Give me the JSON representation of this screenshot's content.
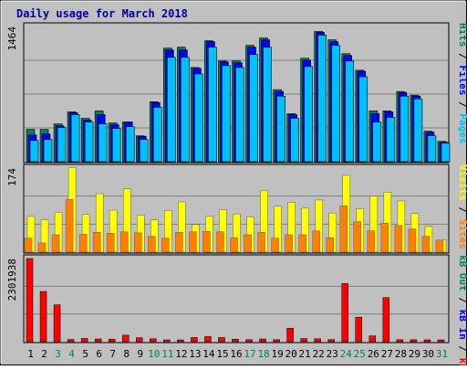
{
  "chart_data": {
    "type": "bar",
    "title": "Daily usage for March 2018",
    "colors": {
      "frame_bg": "#c0c0c0",
      "title": "#0000a0",
      "hits": "#00805c",
      "files": "#0000ff",
      "pages": "#00c0ff",
      "visits": "#ffff00",
      "sites": "#ff8000",
      "kbytes": "#ff0000",
      "weekend_day": "#00805c",
      "weekday": "#000000"
    },
    "categories": [
      "1",
      "2",
      "3",
      "4",
      "5",
      "6",
      "7",
      "8",
      "9",
      "10",
      "11",
      "12",
      "13",
      "14",
      "15",
      "16",
      "17",
      "18",
      "19",
      "20",
      "21",
      "22",
      "23",
      "24",
      "25",
      "26",
      "27",
      "28",
      "29",
      "30",
      "31"
    ],
    "weekend_days": [
      "3",
      "4",
      "10",
      "11",
      "17",
      "18",
      "24",
      "25",
      "31"
    ],
    "panels": [
      {
        "id": "top",
        "max_label": "1464",
        "ymax": 1464,
        "axis_label_parts": [
          {
            "text": "Pages",
            "color": "#00c0ff"
          },
          {
            "text": " / ",
            "color": "#000000"
          },
          {
            "text": "Files",
            "color": "#0000ff"
          },
          {
            "text": " / ",
            "color": "#000000"
          },
          {
            "text": "Hits",
            "color": "#00805c"
          }
        ],
        "series": [
          {
            "name": "Hits",
            "values": [
              350,
              350,
              410,
              540,
              470,
              550,
              420,
              430,
              280,
              650,
              1230,
              1240,
              1020,
              1310,
              1090,
              1090,
              1260,
              1340,
              780,
              520,
              1120,
              1410,
              1320,
              1170,
              990,
              550,
              550,
              760,
              720,
              330,
              220
            ]
          },
          {
            "name": "Files",
            "values": [
              290,
              300,
              390,
              530,
              450,
              510,
              400,
              430,
              275,
              640,
              1210,
              1210,
              1010,
              1300,
              1080,
              1070,
              1240,
              1320,
              760,
              510,
              1100,
              1400,
              1300,
              1150,
              980,
              520,
              540,
              750,
              710,
              320,
              210
            ]
          },
          {
            "name": "Pages",
            "values": [
              230,
              240,
              370,
              510,
              430,
              410,
              360,
              380,
              240,
              590,
              1130,
              1130,
              950,
              1240,
              1040,
              1020,
              1160,
              1240,
              710,
              470,
              1030,
              1370,
              1260,
              1090,
              920,
              430,
              480,
              710,
              680,
              280,
              200
            ]
          }
        ]
      },
      {
        "id": "middle",
        "max_label": "174",
        "ymax": 174,
        "axis_label_parts": [
          {
            "text": "Sites",
            "color": "#ff8000"
          },
          {
            "text": " / ",
            "color": "#000000"
          },
          {
            "text": "Visits",
            "color": "#ffff00"
          }
        ],
        "series": [
          {
            "name": "Visits",
            "values": [
              74,
              67,
              82,
              175,
              78,
              121,
              87,
              131,
              77,
              67,
              86,
              104,
              57,
              74,
              88,
              79,
              73,
              127,
              95,
              103,
              91,
              108,
              81,
              159,
              90,
              116,
              124,
              106,
              80,
              53,
              25
            ]
          },
          {
            "name": "Sites",
            "values": [
              29,
              19,
              36,
              109,
              37,
              41,
              39,
              42,
              40,
              33,
              29,
              41,
              42,
              43,
              42,
              30,
              36,
              41,
              29,
              36,
              36,
              44,
              30,
              96,
              63,
              44,
              60,
              55,
              48,
              33,
              25
            ]
          }
        ]
      },
      {
        "id": "bottom",
        "max_label": "2301938",
        "ymax": 2301938,
        "axis_label_parts": [
          {
            "text": "kB F",
            "color": "#ff0000"
          },
          {
            "text": " / ",
            "color": "#000000"
          },
          {
            "text": "kB In",
            "color": "#0000ff"
          },
          {
            "text": " / ",
            "color": "#000000"
          },
          {
            "text": "kB Out",
            "color": "#00805c"
          }
        ],
        "series": [
          {
            "name": "kB F",
            "values": [
              2301938,
              1390000,
              1020000,
              60000,
              90000,
              75000,
              70000,
              180000,
              110000,
              80000,
              50000,
              35000,
              115000,
              140000,
              115000,
              70000,
              55000,
              75000,
              55000,
              375000,
              85000,
              80000,
              60000,
              1610000,
              680000,
              160000,
              1220000,
              55000,
              55000,
              30000,
              25000
            ]
          }
        ]
      }
    ]
  }
}
